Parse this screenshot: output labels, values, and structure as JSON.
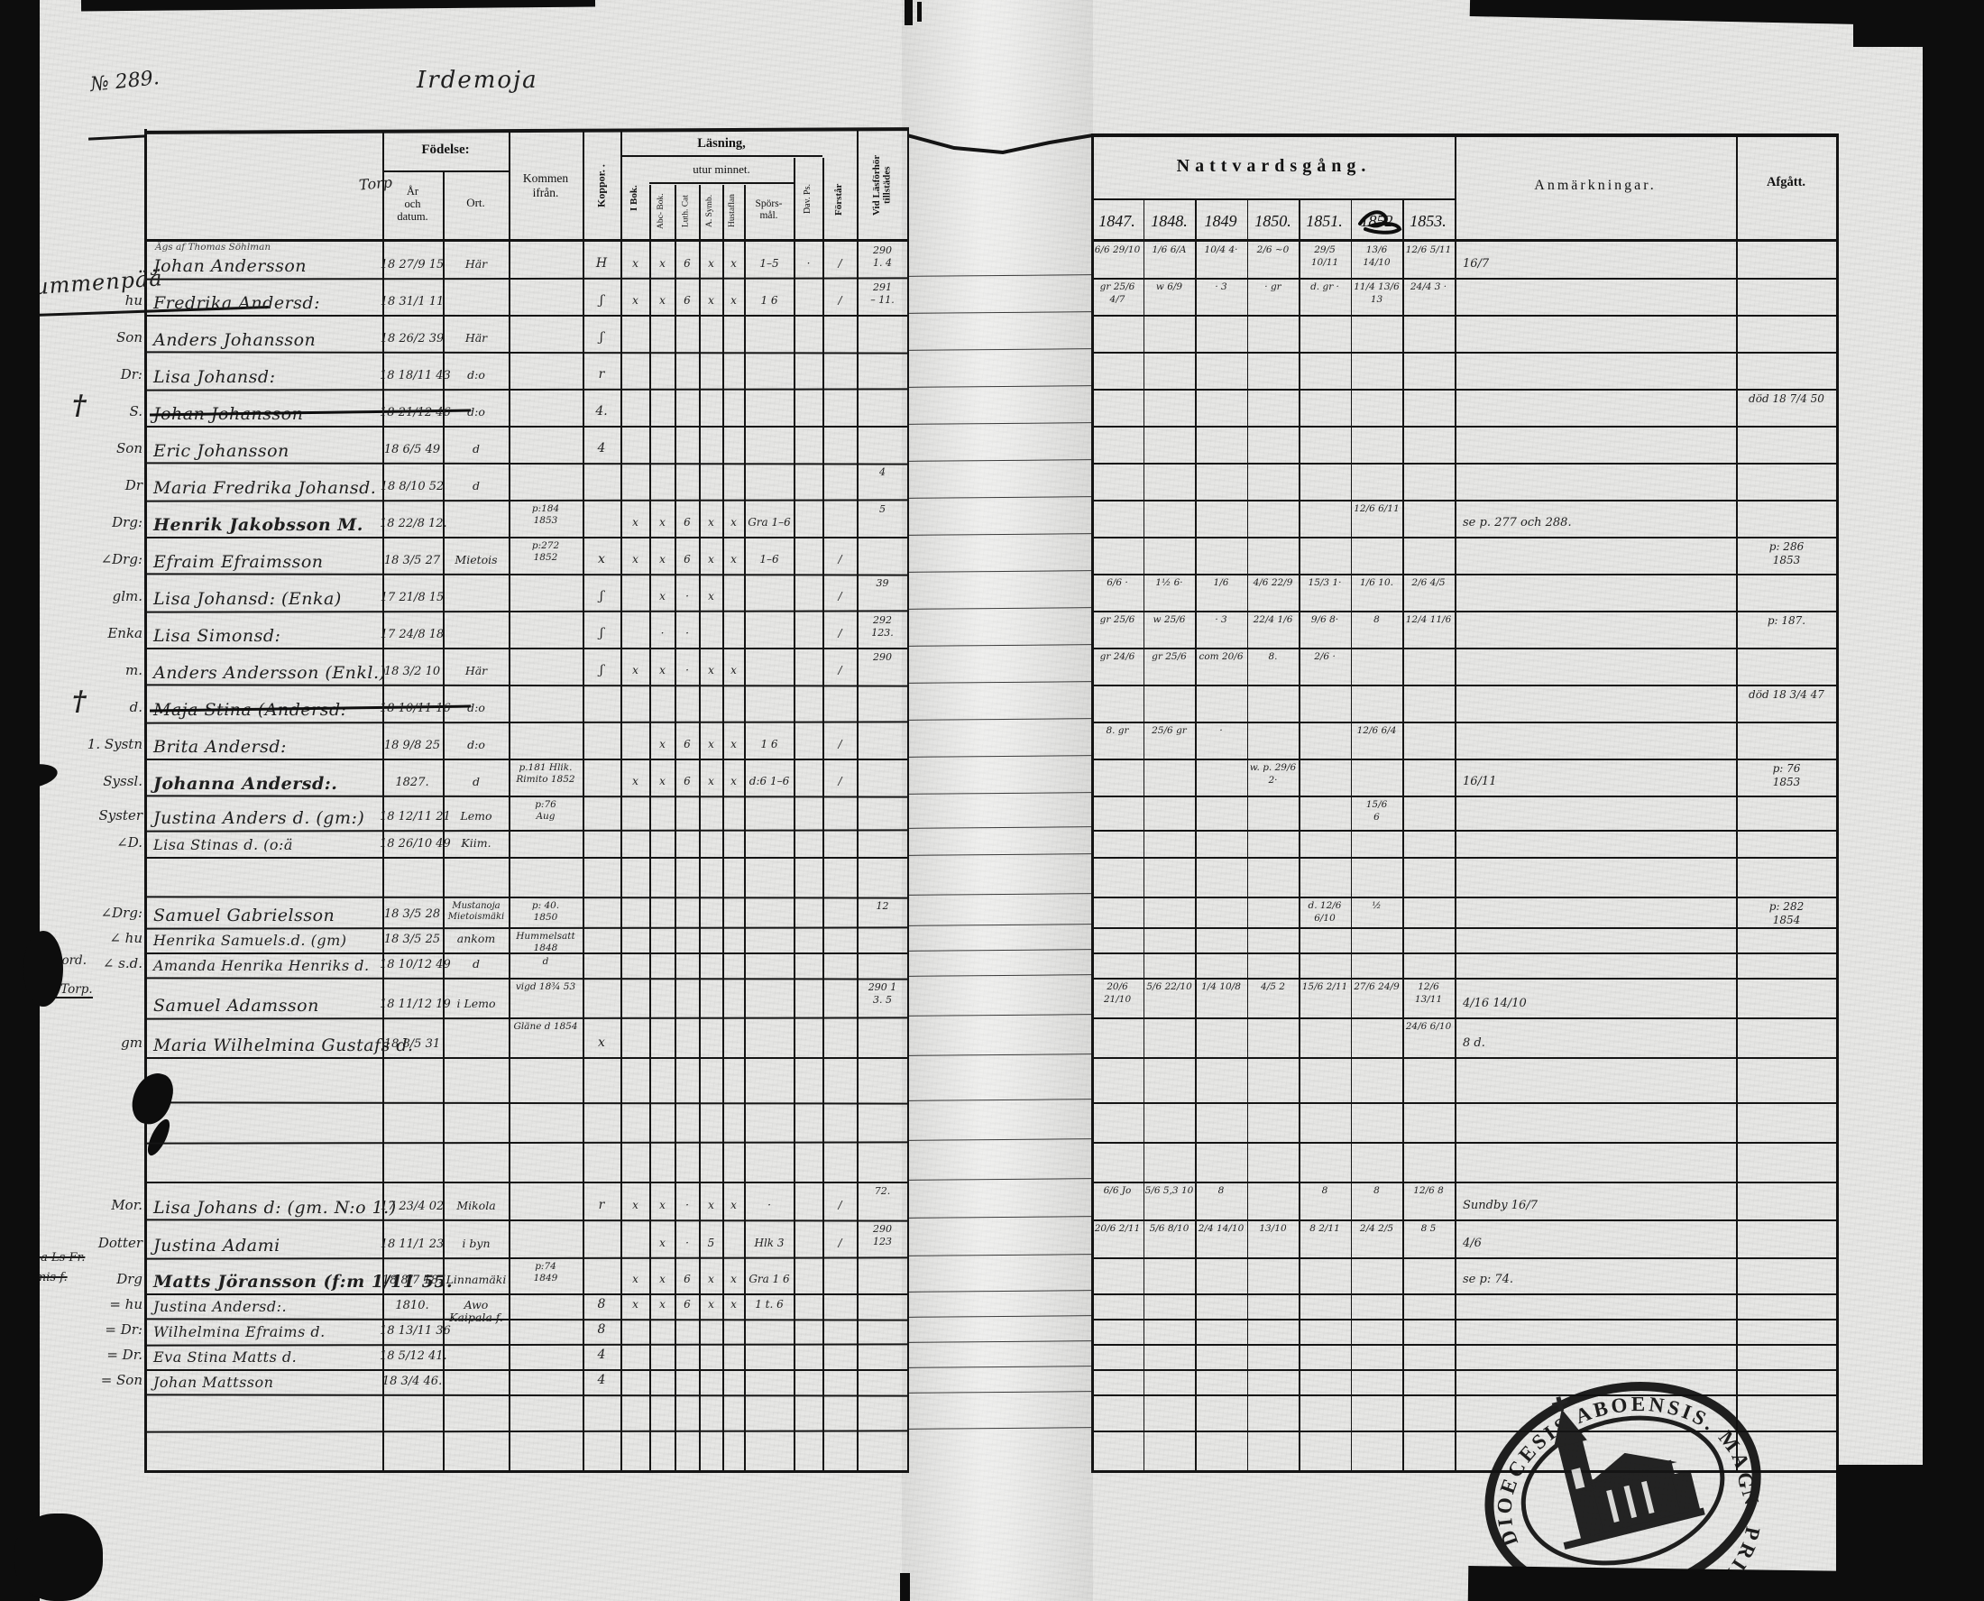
{
  "page": {
    "number": "№ 289.",
    "title": "Irdemoja"
  },
  "left": {
    "header": {
      "name_note": "Torp",
      "fodelse": "Födelse:",
      "ar": "År\noch\ndatum.",
      "ort": "Ort.",
      "kommen": "Kommen\nifrån.",
      "koppor": "Koppor. .",
      "lasning": "Läsning,",
      "utur": "utur minnet.",
      "ibok": "I Bok.",
      "abc": "Abc- Bok.",
      "luth": "Luth. Cat",
      "symb": "A. Symb.",
      "hust": "Hustaflan",
      "spors": "Spörs-\nmål.",
      "dav": "Dav. Ps.",
      "forstar": "Förstår",
      "tillstades": "Vid Läsförhör\ntillstädes"
    }
  },
  "right": {
    "header": {
      "nattvard": "Nattvardsgång.",
      "years": [
        "1847.",
        "1848.",
        "1849",
        "1850.",
        "1851.",
        "1852",
        "1853."
      ],
      "anm": "Anmärkningar.",
      "afgatt": "Afgått."
    }
  },
  "stamp": {
    "text": "DIOECESIS ABOENSIS. MAGN. PRINC. FINL."
  },
  "rows": [
    {
      "farm": "Nummenpää",
      "note": "Ägs af Thomas Söhlman",
      "name": "Johan Andersson",
      "birth": "18 27/9 15",
      "ort": "Här",
      "koppor": "H",
      "lasning": [
        "x",
        "x",
        "6",
        "x",
        "x",
        "1–5",
        "·",
        "/"
      ],
      "tillstades": "290\n1. 4",
      "natt": [
        "6/6 29/10",
        "1/6 6/A",
        "10/4 4·",
        "2/6 ~0",
        "29/5 10/11",
        "13/6 14/10",
        "12/6 5/11"
      ],
      "anm": "16/7"
    },
    {
      "role": "hu",
      "name": "Fredrika Andersd:",
      "birth": "18 31/1 11",
      "koppor": "ʃ",
      "lasning": [
        "x",
        "x",
        "6",
        "x",
        "x",
        "1 6",
        "",
        "/"
      ],
      "tillstades": "291\n– 11.",
      "natt": [
        "gr 25/6 4/7",
        "w 6/9",
        "· 3",
        "· gr",
        "d. gr ·",
        "11/4 13/6 13",
        "24/4 3 ·"
      ]
    },
    {
      "role": "Son",
      "name": "Anders Johansson",
      "birth": "18 26/2 39",
      "ort": "Här",
      "koppor": "ʃ"
    },
    {
      "role": "Dr:",
      "name": "Lisa Johansd:",
      "birth": "18 18/11 43",
      "ort": "d:o",
      "koppor": "r"
    },
    {
      "role": "S.",
      "cross": true,
      "struck": true,
      "name": "Johan Johansson",
      "birth": "18 21/12 46",
      "ort": "d:o",
      "koppor": "4.",
      "afgatt": "död 18 7/4 50"
    },
    {
      "role": "Son",
      "name": "Eric Johansson",
      "birth": "18 6/5 49",
      "ort": "d",
      "koppor": "4"
    },
    {
      "role": "Dr",
      "name": "Maria Fredrika Johansd.",
      "birth": "18 8/10 52",
      "ort": "d",
      "tillstades": "4"
    },
    {
      "role": "Drg:",
      "name": "Henrik Jakobsson M.",
      "birth": "18 22/8 12.",
      "kommen": "p:184\n1853",
      "heavy": true,
      "lasning": [
        "x",
        "x",
        "6",
        "x",
        "x",
        "Gra 1–6",
        "",
        ""
      ],
      "tillstades": "5",
      "natt": [
        "",
        "",
        "",
        "",
        "",
        "12/6 6/11",
        ""
      ],
      "anm": "se p. 277 och 288."
    },
    {
      "role": "∠Drg:",
      "name": "Efraim Efraimsson",
      "birth": "18 3/5 27",
      "ort": "Mietois",
      "kommen": "p:272\n1852",
      "koppor": "x",
      "lasning": [
        "x",
        "x",
        "6",
        "x",
        "x",
        "1–6",
        "",
        "/"
      ],
      "afgatt": "p: 286\n1853"
    },
    {
      "role": "glm.",
      "name": "Lisa Johansd: (Enka)",
      "birth": "17 21/8 15",
      "koppor": "ʃ",
      "lasning": [
        "",
        "x",
        "·",
        "x",
        "",
        "",
        "",
        "/"
      ],
      "tillstades": "39",
      "natt": [
        "6/6 ·",
        "1½ 6·",
        "1/6",
        "4/6 22/9",
        "15/3 1·",
        "1/6 10.",
        "2/6 4/5"
      ]
    },
    {
      "role": "Enka",
      "name": "Lisa Simonsd:",
      "birth": "17 24/8 18",
      "koppor": "ʃ",
      "lasning": [
        "",
        "·",
        "·",
        "",
        "",
        "",
        "",
        "/"
      ],
      "tillstades": "292\n123.",
      "natt": [
        "gr 25/6",
        "w 25/6",
        "· 3",
        "22/4 1/6",
        "9/6 8·",
        "8",
        "12/4 11/6"
      ],
      "afgatt": "p: 187."
    },
    {
      "role": "m.",
      "name": "Anders Andersson (Enkl.)",
      "birth": "18 3/2 10",
      "ort": "Här",
      "koppor": "ʃ",
      "lasning": [
        "x",
        "x",
        "·",
        "x",
        "x",
        "",
        "",
        "/"
      ],
      "tillstades": "290",
      "natt": [
        "gr 24/6",
        "gr 25/6",
        "com 20/6",
        "8.",
        "2/6 ·",
        "",
        ""
      ]
    },
    {
      "role": "d.",
      "cross": true,
      "struck": true,
      "name": "Maja Stina (Andersd:",
      "birth": "18 10/11 16",
      "ort": "d:o",
      "afgatt": "död 18 3/4 47"
    },
    {
      "role": "1. Systn",
      "name": "Brita Andersd:",
      "birth": "18 9/8 25",
      "ort": "d:o",
      "lasning": [
        "",
        "x",
        "6",
        "x",
        "x",
        "1 6",
        "",
        "/"
      ],
      "natt": [
        "8. gr",
        "25/6 gr",
        "·",
        "",
        "",
        "12/6 6/4",
        ""
      ]
    },
    {
      "role": "Syssl.",
      "blob": "margin",
      "name": "Johanna Andersd:.",
      "birth": "1827.",
      "ort": "d",
      "heavy": true,
      "kommen": "p.181 Hlik.\nRimito 1852",
      "lasning": [
        "x",
        "x",
        "6",
        "x",
        "x",
        "d:6 1–6",
        "",
        "/"
      ],
      "natt": [
        "",
        "",
        "",
        "w. p. 29/6 2·",
        "",
        "",
        ""
      ],
      "anm": "16/11",
      "afgatt": "p: 76\n1853"
    },
    {
      "role": "Syster",
      "name": "Justina Anders d. (gm:)",
      "birth": "18 12/11 21",
      "ort": "Lemo",
      "kommen": "p:76\nAug",
      "natt": [
        "",
        "",
        "",
        "",
        "",
        "15/6\n6",
        ""
      ]
    },
    {
      "role": "∠D.",
      "name": "Lisa Stinas d. (o:ä",
      "birth": "18 26/10 49",
      "ort": "Kiim."
    },
    {},
    {
      "role": "∠Drg:",
      "name": "Samuel Gabrielsson",
      "birth": "18 3/5 28",
      "ort": "Mustanoja\nMietoismäki",
      "kommen": "p: 40.\n1850",
      "tillstades": "12",
      "natt": [
        "",
        "",
        "",
        "",
        "d. 12/6 6/10",
        "½",
        ""
      ],
      "afgatt": "p: 282\n1854"
    },
    {
      "role": "∠ hu",
      "name": "Henrika Samuels.d. (gm)",
      "birth": "18 3/5 25",
      "ort": "ankom",
      "kommen": "Hummelsatt 1848"
    },
    {
      "role": "∠ s.d.",
      "name": "Amanda Henrika Henriks d.",
      "birth": "18 10/12 49",
      "ort": "d",
      "kommen": "d"
    },
    {
      "farm2": [
        "Feldala jord.",
        "(Felkola Torp."
      ],
      "name": "Samuel Adamsson",
      "birth": "18 11/12 19",
      "ort": "i Lemo",
      "kommen": "vigd 18¾ 53",
      "tillstades": "290 1\n3. 5",
      "natt": [
        "20/6 21/10",
        "5/6 22/10",
        "1/4 10/8",
        "4/5 2",
        "15/6 2/11",
        "27/6 24/9",
        "12/6 13/11"
      ],
      "anm": "4/16 14/10"
    },
    {
      "role": "gm",
      "name": "Maria Wilhelmina Gustafs d.",
      "birth": "18 8/5 31",
      "kommen": "Gläne d 1854",
      "koppor": "x",
      "natt": [
        "",
        "",
        "",
        "",
        "",
        "",
        "24/6 6/10"
      ],
      "anm": "8 d."
    },
    {
      "blob": "row"
    },
    {},
    {},
    {
      "role": "Mor.",
      "name": "Lisa Johans d: (gm. N:o 1.)",
      "birth": "17 23/4 02",
      "ort": "Mikola",
      "koppor": "r",
      "lasning": [
        "x",
        "x",
        "·",
        "x",
        "x",
        "·",
        "",
        "/"
      ],
      "tillstades": "72.",
      "natt": [
        "6/6 Jo",
        "5/6 5,3 10",
        "8",
        "",
        "8",
        "8",
        "12/6 8"
      ],
      "anm": "Sundby 16/7"
    },
    {
      "role": "Dotter",
      "name": "Justina Adami",
      "birth": "18 11/1 23",
      "ort": "i byn",
      "lasning": [
        "",
        "x",
        "·",
        "5",
        "",
        "Hlk 3",
        "",
        "/"
      ],
      "tillstades": "290\n123",
      "natt": [
        "20/6 2/11",
        "5/6 8/10",
        "2/4 14/10",
        "13/10",
        "8 2/11",
        "2/4 2/5",
        "8 5"
      ],
      "anm": "4/6"
    },
    {
      "role": "Drg",
      "farm_struck": [
        "Lauha Ls Fr.",
        "Tuomis f."
      ],
      "name": "Matts Jöransson (f:m 1/11 55.",
      "birth": "18 8/7 18.",
      "ort": "Linnamäki",
      "kommen": "p:74\n1849",
      "heavy": true,
      "lasning": [
        "x",
        "x",
        "6",
        "x",
        "x",
        "Gra 1 6",
        "",
        ""
      ],
      "anm": "se p: 74."
    },
    {
      "role": "= hu",
      "name": "Justina Andersd:.",
      "birth": "1810.",
      "ort": "Awo Kaipala f.",
      "koppor": "8",
      "lasning": [
        "x",
        "x",
        "6",
        "x",
        "x",
        "1 t. 6",
        "",
        ""
      ]
    },
    {
      "role": "= Dr:",
      "name": "Wilhelmina Efraims d.",
      "birth": "18 13/11 36",
      "koppor": "8"
    },
    {
      "role": "= Dr.",
      "name": "Eva Stina Matts d.",
      "birth": "18 5/12 41.",
      "koppor": "4"
    },
    {
      "role": "= Son",
      "name": "Johan Mattsson",
      "birth": "18 3/4 46.",
      "koppor": "4"
    },
    {},
    {}
  ]
}
